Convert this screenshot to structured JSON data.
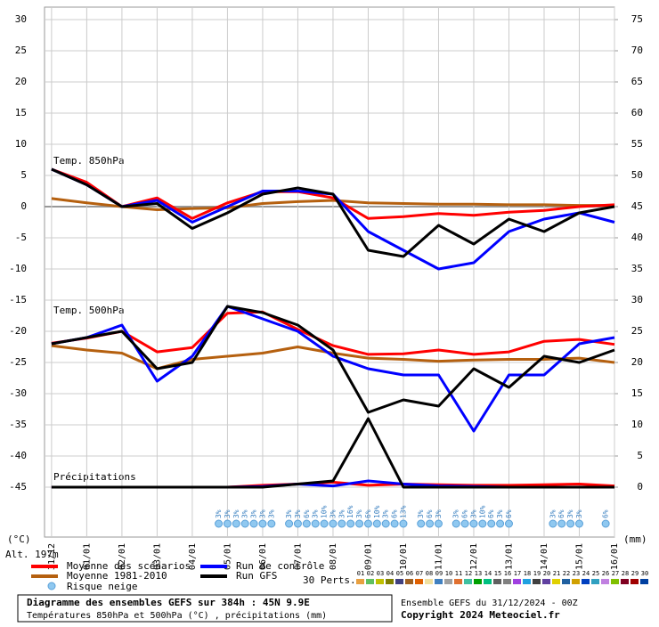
{
  "chart_data": {
    "type": "line",
    "location_label": "Alt. 197m",
    "y_label": "(°C)",
    "y2_label": "(mm)",
    "panel_labels": {
      "temp850": "Temp. 850hPa",
      "temp500": "Temp. 500hPa",
      "precip": "Précipitations"
    },
    "x": [
      0,
      1,
      2,
      3,
      4,
      5,
      6,
      7,
      8,
      9,
      10,
      11,
      12,
      13,
      14,
      15,
      16
    ],
    "xlim": [
      -0.2,
      16
    ],
    "xticks": [
      {
        "value": 0,
        "label": "31/12"
      },
      {
        "value": 1,
        "label": "01/01"
      },
      {
        "value": 2,
        "label": "02/01"
      },
      {
        "value": 3,
        "label": "03/01"
      },
      {
        "value": 4,
        "label": "04/01"
      },
      {
        "value": 5,
        "label": "05/01"
      },
      {
        "value": 6,
        "label": "06/01"
      },
      {
        "value": 7,
        "label": "07/01"
      },
      {
        "value": 8,
        "label": "08/01"
      },
      {
        "value": 9,
        "label": "09/01"
      },
      {
        "value": 10,
        "label": "10/01"
      },
      {
        "value": 11,
        "label": "11/01"
      },
      {
        "value": 12,
        "label": "12/01"
      },
      {
        "value": 13,
        "label": "13/01"
      },
      {
        "value": 14,
        "label": "14/01"
      },
      {
        "value": 15,
        "label": "15/01"
      },
      {
        "value": 16,
        "label": "16/01"
      }
    ],
    "ylim": [
      -53,
      32
    ],
    "yticks": [
      -45,
      -40,
      -35,
      -30,
      -25,
      -20,
      -15,
      -10,
      -5,
      0,
      5,
      10,
      15,
      20,
      25,
      30
    ],
    "y2lim": [
      -8,
      77
    ],
    "y2ticks": [
      0,
      5,
      10,
      15,
      20,
      25,
      30,
      35,
      40,
      45,
      50,
      55,
      60,
      65,
      70,
      75
    ],
    "grid": true,
    "series": [
      {
        "name": "Moyenne des scénarios",
        "color": "#ff0000",
        "temp850": [
          6,
          3.9,
          0,
          1.4,
          -1.9,
          0.6,
          2.4,
          2.4,
          1.4,
          -1.9,
          -1.6,
          -1.1,
          -1.4,
          -0.9,
          -0.6,
          0,
          0.3
        ],
        "temp500": [
          -21.9,
          -21.1,
          -20,
          -23.3,
          -22.6,
          -17.1,
          -16.9,
          -19.7,
          -22.3,
          -23.7,
          -23.6,
          -23,
          -23.7,
          -23.3,
          -21.6,
          -21.3,
          -22.1
        ],
        "precip": [
          0,
          0,
          0,
          0,
          0,
          0,
          0.3,
          0.5,
          0.8,
          0.3,
          0.5,
          0.4,
          0.3,
          0.3,
          0.4,
          0.5,
          0.2
        ]
      },
      {
        "name": "Moyenne 1981-2010",
        "color": "#b5600f",
        "temp850": [
          1.3,
          0.6,
          0,
          -0.5,
          -0.3,
          -0.2,
          0.5,
          0.8,
          1,
          0.6,
          0.5,
          0.4,
          0.4,
          0.3,
          0.3,
          0.2,
          0.2
        ],
        "temp500": [
          -22.3,
          -23,
          -23.5,
          -26,
          -24.5,
          -24,
          -23.5,
          -22.5,
          -23.5,
          -24.3,
          -24.5,
          -24.8,
          -24.6,
          -24.5,
          -24.5,
          -24.3,
          -25
        ]
      },
      {
        "name": "Run de contrôle",
        "color": "#0000ff",
        "temp850": [
          6,
          3.5,
          0,
          1,
          -2.5,
          0,
          2.5,
          2.5,
          2,
          -4,
          -7,
          -10,
          -9,
          -4,
          -2,
          -1,
          -2.5
        ],
        "temp500": [
          -22,
          -21,
          -19,
          -28,
          -24,
          -16,
          -18,
          -20,
          -24,
          -26,
          -27,
          -27,
          -36,
          -27,
          -27,
          -22,
          -21
        ],
        "precip": [
          0,
          0,
          0,
          0,
          0,
          0,
          0.1,
          0.5,
          0.2,
          1,
          0.5,
          0.2,
          0.1,
          0,
          0,
          0,
          0
        ]
      },
      {
        "name": "Run GFS",
        "color": "#000000",
        "temp850": [
          6,
          3.5,
          0,
          0.5,
          -3.5,
          -1,
          2,
          3,
          2,
          -7,
          -8,
          -3,
          -6,
          -2,
          -4,
          -1,
          0
        ],
        "temp500": [
          -22,
          -21,
          -20,
          -26,
          -25,
          -16,
          -17,
          -19,
          -23,
          -33,
          -31,
          -32,
          -26,
          -29,
          -24,
          -25,
          -23
        ],
        "precip": [
          0,
          0,
          0,
          0,
          0,
          0,
          0,
          0.5,
          1,
          11,
          0,
          0,
          0,
          0,
          0,
          0,
          0
        ]
      }
    ],
    "snow_risk": {
      "name": "Risque neige",
      "x": [
        4.75,
        5,
        5.25,
        5.5,
        5.75,
        6,
        6.25,
        6.75,
        7,
        7.25,
        7.5,
        7.75,
        8,
        8.25,
        8.5,
        8.75,
        9,
        9.25,
        9.5,
        9.75,
        10,
        10.5,
        10.75,
        11,
        11.5,
        11.75,
        12,
        12.25,
        12.5,
        12.75,
        13,
        14.25,
        14.5,
        14.75,
        15,
        15.75
      ],
      "values": [
        3,
        3,
        3,
        3,
        3,
        3,
        3,
        3,
        3,
        6,
        3,
        10,
        3,
        3,
        16,
        3,
        6,
        10,
        3,
        6,
        13,
        3,
        6,
        3,
        3,
        6,
        3,
        10,
        6,
        3,
        6,
        3,
        6,
        3,
        3,
        6
      ],
      "value_labels": [
        "3%",
        "3%",
        "3%",
        "3%",
        "3%",
        "3%",
        "3%",
        "3%",
        "3%",
        "6%",
        "3%",
        "10%",
        "3%",
        "3%",
        "16%",
        "3%",
        "6%",
        "10%",
        "3%",
        "6%",
        "13%",
        "3%",
        "6%",
        "3%",
        "3%",
        "6%",
        "3%",
        "10%",
        "6%",
        "3%",
        "6%",
        "3%",
        "6%",
        "3%",
        "3%",
        "6%"
      ]
    },
    "members_label": "30 Perts.",
    "members": [
      {
        "name": "01",
        "color": "#e8a040"
      },
      {
        "name": "02",
        "color": "#60c060"
      },
      {
        "name": "03",
        "color": "#c0c000"
      },
      {
        "name": "04",
        "color": "#808000"
      },
      {
        "name": "05",
        "color": "#404080"
      },
      {
        "name": "06",
        "color": "#a06020"
      },
      {
        "name": "07",
        "color": "#e06000"
      },
      {
        "name": "08",
        "color": "#f0e0a0"
      },
      {
        "name": "09",
        "color": "#4080c0"
      },
      {
        "name": "10",
        "color": "#a0a0a0"
      },
      {
        "name": "11",
        "color": "#e07030"
      },
      {
        "name": "12",
        "color": "#40c0a0"
      },
      {
        "name": "13",
        "color": "#00a000"
      },
      {
        "name": "14",
        "color": "#00c080"
      },
      {
        "name": "15",
        "color": "#606060"
      },
      {
        "name": "16",
        "color": "#808080"
      },
      {
        "name": "17",
        "color": "#a040e0"
      },
      {
        "name": "18",
        "color": "#20a0e0"
      },
      {
        "name": "19",
        "color": "#404040"
      },
      {
        "name": "20",
        "color": "#6040a0"
      },
      {
        "name": "21",
        "color": "#e0d000"
      },
      {
        "name": "22",
        "color": "#2060a0"
      },
      {
        "name": "23",
        "color": "#d0a000"
      },
      {
        "name": "24",
        "color": "#0040c0"
      },
      {
        "name": "25",
        "color": "#30a0c0"
      },
      {
        "name": "26",
        "color": "#c080e0"
      },
      {
        "name": "27",
        "color": "#80c000"
      },
      {
        "name": "28",
        "color": "#800020"
      },
      {
        "name": "29",
        "color": "#a00000"
      },
      {
        "name": "30",
        "color": "#0040a0"
      }
    ],
    "footer": {
      "title": "Diagramme des ensembles GEFS sur 384h : 45N 9.9E",
      "subtitle": "Températures 850hPa et 500hPa (°C) , précipitations (mm)",
      "run": "Ensemble GEFS du 31/12/2024 - 00Z",
      "copyright": "Copyright 2024 Meteociel.fr"
    }
  }
}
